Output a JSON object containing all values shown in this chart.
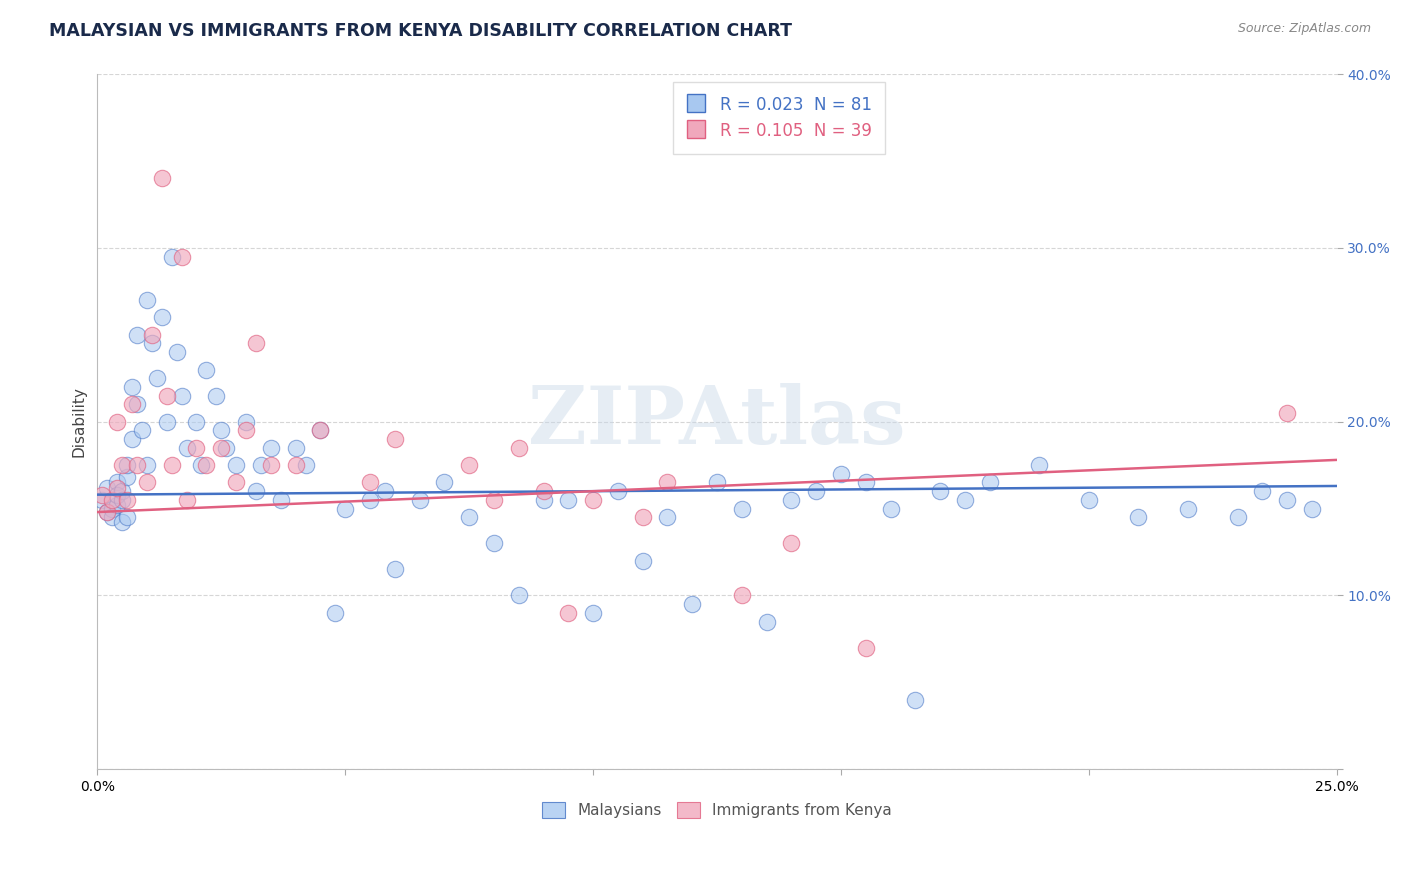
{
  "title": "MALAYSIAN VS IMMIGRANTS FROM KENYA DISABILITY CORRELATION CHART",
  "source": "Source: ZipAtlas.com",
  "ylabel": "Disability",
  "xlim": [
    0.0,
    0.25
  ],
  "ylim": [
    0.0,
    0.4
  ],
  "R_malaysian": 0.023,
  "N_malaysian": 81,
  "R_kenya": 0.105,
  "N_kenya": 39,
  "blue_color": "#A8C8F0",
  "pink_color": "#F0A8BC",
  "blue_line_color": "#4472C4",
  "pink_line_color": "#E06080",
  "malaysian_x": [
    0.001,
    0.002,
    0.002,
    0.003,
    0.003,
    0.004,
    0.004,
    0.004,
    0.005,
    0.005,
    0.005,
    0.006,
    0.006,
    0.006,
    0.007,
    0.007,
    0.008,
    0.008,
    0.009,
    0.01,
    0.01,
    0.011,
    0.012,
    0.013,
    0.014,
    0.015,
    0.016,
    0.017,
    0.018,
    0.02,
    0.021,
    0.022,
    0.024,
    0.025,
    0.026,
    0.028,
    0.03,
    0.032,
    0.033,
    0.035,
    0.037,
    0.04,
    0.042,
    0.045,
    0.048,
    0.05,
    0.055,
    0.058,
    0.06,
    0.065,
    0.07,
    0.075,
    0.08,
    0.085,
    0.09,
    0.095,
    0.1,
    0.105,
    0.11,
    0.115,
    0.12,
    0.125,
    0.13,
    0.135,
    0.14,
    0.145,
    0.15,
    0.155,
    0.16,
    0.165,
    0.17,
    0.175,
    0.18,
    0.19,
    0.2,
    0.21,
    0.22,
    0.23,
    0.235,
    0.24,
    0.245
  ],
  "malaysian_y": [
    0.155,
    0.148,
    0.162,
    0.15,
    0.145,
    0.152,
    0.165,
    0.158,
    0.16,
    0.142,
    0.155,
    0.168,
    0.175,
    0.145,
    0.22,
    0.19,
    0.21,
    0.25,
    0.195,
    0.175,
    0.27,
    0.245,
    0.225,
    0.26,
    0.2,
    0.295,
    0.24,
    0.215,
    0.185,
    0.2,
    0.175,
    0.23,
    0.215,
    0.195,
    0.185,
    0.175,
    0.2,
    0.16,
    0.175,
    0.185,
    0.155,
    0.185,
    0.175,
    0.195,
    0.09,
    0.15,
    0.155,
    0.16,
    0.115,
    0.155,
    0.165,
    0.145,
    0.13,
    0.1,
    0.155,
    0.155,
    0.09,
    0.16,
    0.12,
    0.145,
    0.095,
    0.165,
    0.15,
    0.085,
    0.155,
    0.16,
    0.17,
    0.165,
    0.15,
    0.04,
    0.16,
    0.155,
    0.165,
    0.175,
    0.155,
    0.145,
    0.15,
    0.145,
    0.16,
    0.155,
    0.15
  ],
  "kenya_x": [
    0.001,
    0.002,
    0.003,
    0.004,
    0.004,
    0.005,
    0.006,
    0.007,
    0.008,
    0.01,
    0.011,
    0.013,
    0.014,
    0.015,
    0.017,
    0.018,
    0.02,
    0.022,
    0.025,
    0.028,
    0.03,
    0.032,
    0.035,
    0.04,
    0.045,
    0.055,
    0.06,
    0.075,
    0.08,
    0.085,
    0.09,
    0.095,
    0.1,
    0.11,
    0.115,
    0.13,
    0.14,
    0.155,
    0.24
  ],
  "kenya_y": [
    0.158,
    0.148,
    0.155,
    0.162,
    0.2,
    0.175,
    0.155,
    0.21,
    0.175,
    0.165,
    0.25,
    0.34,
    0.215,
    0.175,
    0.295,
    0.155,
    0.185,
    0.175,
    0.185,
    0.165,
    0.195,
    0.245,
    0.175,
    0.175,
    0.195,
    0.165,
    0.19,
    0.175,
    0.155,
    0.185,
    0.16,
    0.09,
    0.155,
    0.145,
    0.165,
    0.1,
    0.13,
    0.07,
    0.205
  ],
  "blue_trend_x0": 0.0,
  "blue_trend_y0": 0.158,
  "blue_trend_x1": 0.25,
  "blue_trend_y1": 0.163,
  "pink_trend_x0": 0.0,
  "pink_trend_y0": 0.148,
  "pink_trend_x1": 0.25,
  "pink_trend_y1": 0.178
}
